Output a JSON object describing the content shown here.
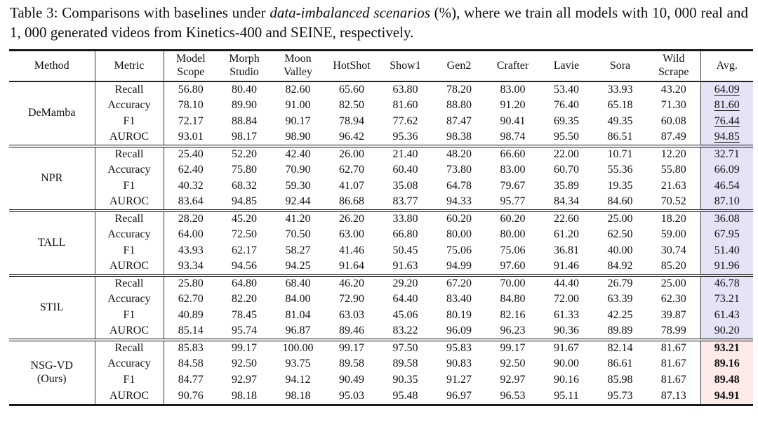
{
  "caption": {
    "prefix": "Table 3: Comparisons with baselines under ",
    "emphasis": "data-imbalanced scenarios",
    "suffix": " (%), where we train all models with 10, 000 real and 1, 000 generated videos from Kinetics-400 and SEINE, respectively."
  },
  "table": {
    "highlight_colors": {
      "baseline_avg": "#e4e4f6",
      "ours_avg": "#fcebe9"
    },
    "columns": [
      "Method",
      "Metric",
      "Model\nScope",
      "Morph\nStudio",
      "Moon\nValley",
      "HotShot",
      "Show1",
      "Gen2",
      "Crafter",
      "Lavie",
      "Sora",
      "Wild\nScrape",
      "Avg."
    ],
    "groups": [
      {
        "method": "DeMamba",
        "avg_style": "underline",
        "rows": [
          {
            "metric": "Recall",
            "values": [
              "56.80",
              "80.40",
              "82.60",
              "65.60",
              "63.80",
              "78.20",
              "83.00",
              "53.40",
              "33.93",
              "43.20"
            ],
            "avg": "64.09"
          },
          {
            "metric": "Accuracy",
            "values": [
              "78.10",
              "89.90",
              "91.00",
              "82.50",
              "81.60",
              "88.80",
              "91.20",
              "76.40",
              "65.18",
              "71.30"
            ],
            "avg": "81.60"
          },
          {
            "metric": "F1",
            "values": [
              "72.17",
              "88.84",
              "90.17",
              "78.94",
              "77.62",
              "87.47",
              "90.41",
              "69.35",
              "49.35",
              "60.08"
            ],
            "avg": "76.44"
          },
          {
            "metric": "AUROC",
            "values": [
              "93.01",
              "98.17",
              "98.90",
              "96.42",
              "95.36",
              "98.38",
              "98.74",
              "95.50",
              "86.51",
              "87.49"
            ],
            "avg": "94.85"
          }
        ]
      },
      {
        "method": "NPR",
        "avg_style": "plain",
        "rows": [
          {
            "metric": "Recall",
            "values": [
              "25.40",
              "52.20",
              "42.40",
              "26.00",
              "21.40",
              "48.20",
              "66.60",
              "22.00",
              "10.71",
              "12.20"
            ],
            "avg": "32.71"
          },
          {
            "metric": "Accuracy",
            "values": [
              "62.40",
              "75.80",
              "70.90",
              "62.70",
              "60.40",
              "73.80",
              "83.00",
              "60.70",
              "55.36",
              "55.80"
            ],
            "avg": "66.09"
          },
          {
            "metric": "F1",
            "values": [
              "40.32",
              "68.32",
              "59.30",
              "41.07",
              "35.08",
              "64.78",
              "79.67",
              "35.89",
              "19.35",
              "21.63"
            ],
            "avg": "46.54"
          },
          {
            "metric": "AUROC",
            "values": [
              "83.64",
              "94.85",
              "92.44",
              "86.68",
              "83.77",
              "94.33",
              "95.77",
              "84.34",
              "84.60",
              "70.52"
            ],
            "avg": "87.10"
          }
        ]
      },
      {
        "method": "TALL",
        "avg_style": "plain",
        "rows": [
          {
            "metric": "Recall",
            "values": [
              "28.20",
              "45.20",
              "41.20",
              "26.20",
              "33.80",
              "60.20",
              "60.20",
              "22.60",
              "25.00",
              "18.20"
            ],
            "avg": "36.08"
          },
          {
            "metric": "Accuracy",
            "values": [
              "64.00",
              "72.50",
              "70.50",
              "63.00",
              "66.80",
              "80.00",
              "80.00",
              "61.20",
              "62.50",
              "59.00"
            ],
            "avg": "67.95"
          },
          {
            "metric": "F1",
            "values": [
              "43.93",
              "62.17",
              "58.27",
              "41.46",
              "50.45",
              "75.06",
              "75.06",
              "36.81",
              "40.00",
              "30.74"
            ],
            "avg": "51.40"
          },
          {
            "metric": "AUROC",
            "values": [
              "93.34",
              "94.56",
              "94.25",
              "91.64",
              "91.63",
              "94.99",
              "97.60",
              "91.46",
              "84.92",
              "85.20"
            ],
            "avg": "91.96"
          }
        ]
      },
      {
        "method": "STIL",
        "avg_style": "plain",
        "rows": [
          {
            "metric": "Recall",
            "values": [
              "25.80",
              "64.80",
              "68.40",
              "46.20",
              "29.20",
              "67.20",
              "70.00",
              "44.40",
              "26.79",
              "25.00"
            ],
            "avg": "46.78"
          },
          {
            "metric": "Accuracy",
            "values": [
              "62.70",
              "82.20",
              "84.00",
              "72.90",
              "64.40",
              "83.40",
              "84.80",
              "72.00",
              "63.39",
              "62.30"
            ],
            "avg": "73.21"
          },
          {
            "metric": "F1",
            "values": [
              "40.89",
              "78.45",
              "81.04",
              "63.03",
              "45.06",
              "80.19",
              "82.16",
              "61.33",
              "42.25",
              "39.87"
            ],
            "avg": "61.43"
          },
          {
            "metric": "AUROC",
            "values": [
              "85.14",
              "95.74",
              "96.87",
              "89.46",
              "83.22",
              "96.09",
              "96.23",
              "90.36",
              "89.89",
              "78.99"
            ],
            "avg": "90.20"
          }
        ]
      },
      {
        "method": "NSG-VD\n(Ours)",
        "avg_style": "bold",
        "rows": [
          {
            "metric": "Recall",
            "values": [
              "85.83",
              "99.17",
              "100.00",
              "99.17",
              "97.50",
              "95.83",
              "99.17",
              "91.67",
              "82.14",
              "81.67"
            ],
            "avg": "93.21"
          },
          {
            "metric": "Accuracy",
            "values": [
              "84.58",
              "92.50",
              "93.75",
              "89.58",
              "89.58",
              "90.83",
              "92.50",
              "90.00",
              "86.61",
              "81.67"
            ],
            "avg": "89.16"
          },
          {
            "metric": "F1",
            "values": [
              "84.77",
              "92.97",
              "94.12",
              "90.49",
              "90.35",
              "91.27",
              "92.97",
              "90.16",
              "85.98",
              "81.67"
            ],
            "avg": "89.48"
          },
          {
            "metric": "AUROC",
            "values": [
              "90.76",
              "98.18",
              "98.18",
              "95.03",
              "95.48",
              "96.97",
              "96.53",
              "95.11",
              "95.73",
              "87.13"
            ],
            "avg": "94.91"
          }
        ]
      }
    ]
  }
}
